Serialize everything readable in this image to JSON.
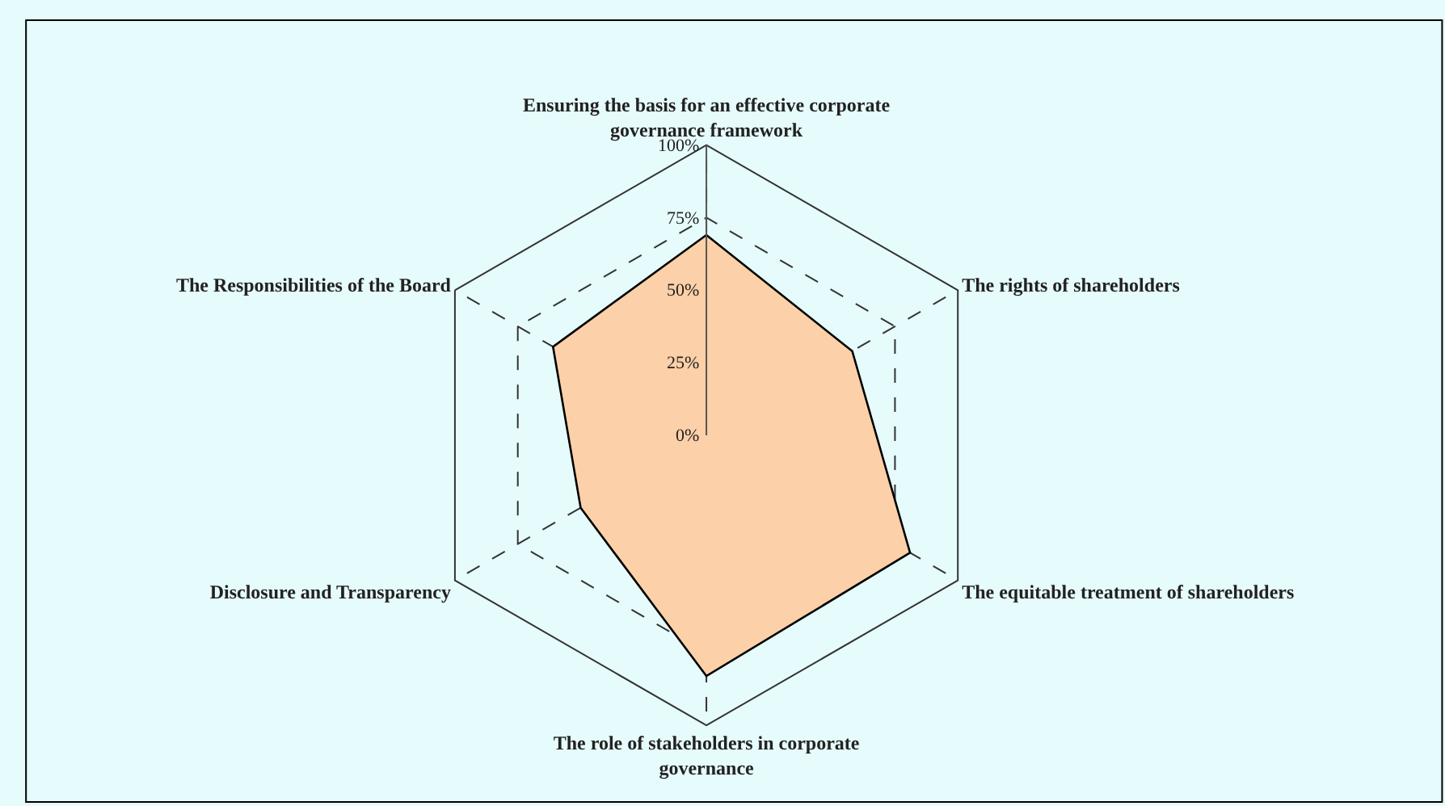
{
  "chart_data": {
    "type": "radar",
    "categories": [
      "Ensuring the basis for an effective corporate\ngovernance framework",
      "The rights of shareholders",
      "The equitable treatment of shareholders",
      "The role of stakeholders in corporate\ngovernance",
      "Disclosure and Transparency",
      "The Responsibilities of the Board"
    ],
    "series": [
      {
        "color": "#fcd0a8",
        "values": [
          69,
          58,
          81,
          83,
          50,
          61
        ]
      }
    ],
    "ylim": [
      0,
      100
    ],
    "yticks": [
      {
        "value": 0,
        "label": "0%"
      },
      {
        "value": 25,
        "label": "25%"
      },
      {
        "value": 50,
        "label": "50%"
      },
      {
        "value": 75,
        "label": "75%"
      },
      {
        "value": 100,
        "label": "100%"
      }
    ],
    "grid": true,
    "marker": "none",
    "line_style": "solid"
  }
}
